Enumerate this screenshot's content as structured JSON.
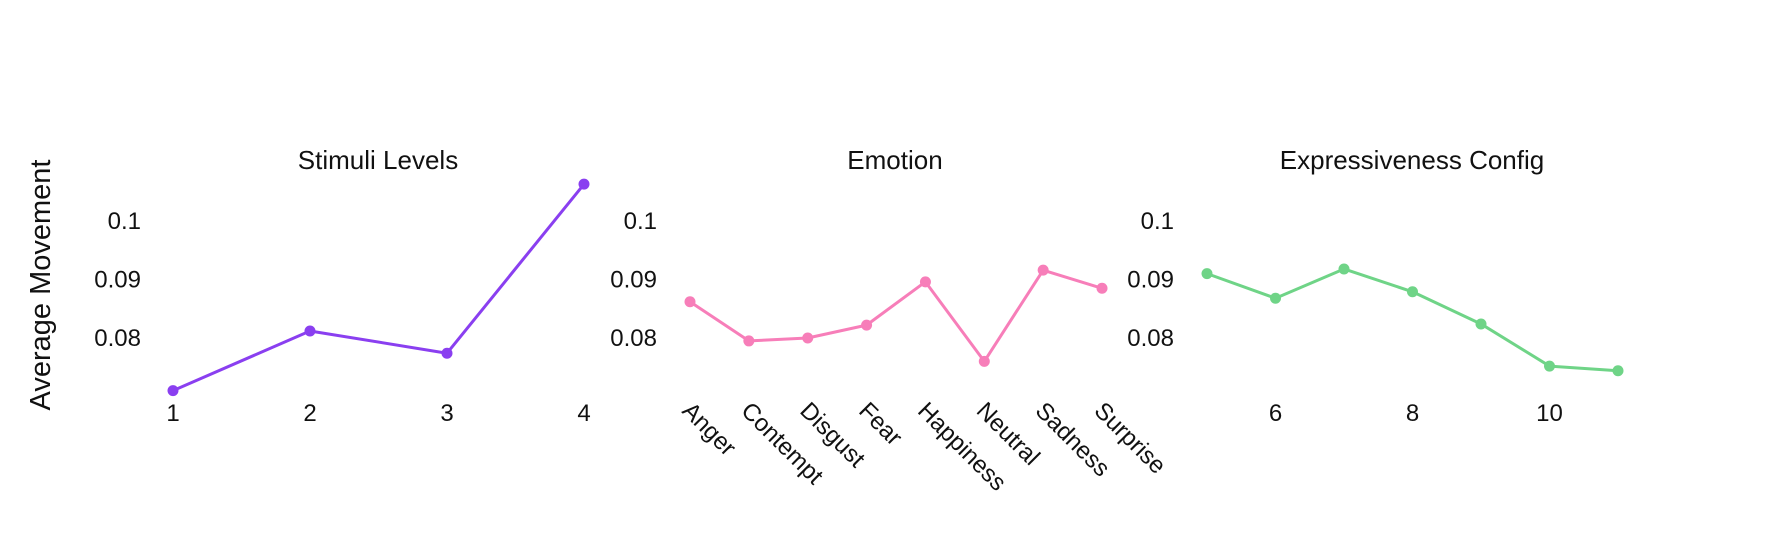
{
  "ylabel": "Average Movement",
  "chart_data": [
    {
      "type": "line",
      "title": "Stimuli Levels",
      "x": [
        1,
        2,
        3,
        4
      ],
      "values": [
        0.071,
        0.0812,
        0.0774,
        0.1063
      ],
      "x_ticks": [
        "1",
        "2",
        "3",
        "4"
      ],
      "xlim": [
        0.5,
        4.0
      ],
      "yticks": [
        "0.08",
        "0.09",
        "0.1"
      ],
      "ylim": [
        0.066,
        0.112
      ],
      "color": "#8a3ff0"
    },
    {
      "type": "line",
      "title": "Emotion",
      "categories": [
        "Anger",
        "Contempt",
        "Disgust",
        "Fear",
        "Happiness",
        "Neutral",
        "Sadness",
        "Surprise"
      ],
      "values": [
        0.0862,
        0.0795,
        0.08,
        0.0822,
        0.0896,
        0.076,
        0.0916,
        0.0885
      ],
      "yticks": [
        "0.08",
        "0.09",
        "0.1"
      ],
      "ylim": [
        0.066,
        0.112
      ],
      "color": "#f77eb9"
    },
    {
      "type": "line",
      "title": "Expressiveness Config",
      "x": [
        5,
        6,
        7,
        8,
        9,
        10,
        11
      ],
      "values": [
        0.091,
        0.0868,
        0.0918,
        0.0879,
        0.0824,
        0.0752,
        0.0744
      ],
      "x_ticks": [
        "6",
        "8",
        "10"
      ],
      "xlim": [
        5.0,
        11.5
      ],
      "yticks": [
        "0.08",
        "0.09",
        "0.1"
      ],
      "ylim": [
        0.066,
        0.112
      ],
      "color": "#6fd487"
    }
  ]
}
